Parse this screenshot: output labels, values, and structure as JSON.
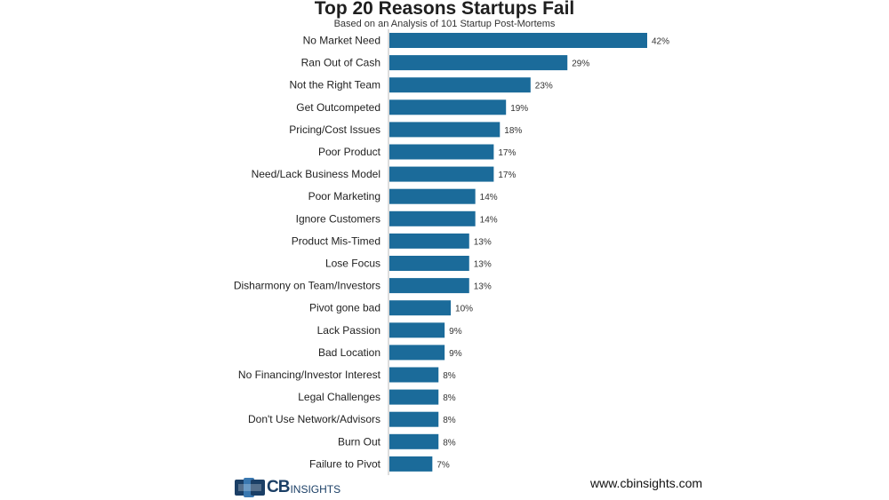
{
  "header": {
    "title": "Top 20 Reasons Startups Fail",
    "subtitle": "Based on an Analysis of 101 Startup Post-Mortems"
  },
  "chart_data": {
    "type": "bar",
    "orientation": "horizontal",
    "title": "Top 20 Reasons Startups Fail",
    "subtitle": "Based on an Analysis of 101 Startup Post-Mortems",
    "categories": [
      "No Market Need",
      "Ran Out of Cash",
      "Not the Right Team",
      "Get Outcompeted",
      "Pricing/Cost Issues",
      "Poor Product",
      "Need/Lack Business Model",
      "Poor Marketing",
      "Ignore Customers",
      "Product Mis-Timed",
      "Lose Focus",
      "Disharmony on Team/Investors",
      "Pivot gone bad",
      "Lack Passion",
      "Bad Location",
      "No Financing/Investor Interest",
      "Legal Challenges",
      "Don't Use Network/Advisors",
      "Burn Out",
      "Failure to Pivot"
    ],
    "values": [
      42,
      29,
      23,
      19,
      18,
      17,
      17,
      14,
      14,
      13,
      13,
      13,
      10,
      9,
      9,
      8,
      8,
      8,
      8,
      7
    ],
    "value_labels": [
      "42%",
      "29%",
      "23%",
      "19%",
      "18%",
      "17%",
      "17%",
      "14%",
      "14%",
      "13%",
      "13%",
      "13%",
      "10%",
      "9%",
      "9%",
      "8%",
      "8%",
      "8%",
      "8%",
      "7%"
    ],
    "xlim": [
      0,
      42
    ],
    "unit": "%",
    "grid": false,
    "bar_color": "#1b6b9a",
    "axis_color": "#bbbbbb"
  },
  "footer": {
    "logo_cb": "CB",
    "logo_insights": "INSIGHTS",
    "site": "www.cbinsights.com"
  },
  "colors": {
    "logo_dark": "#1b3f66",
    "logo_light": "#3a78b0"
  }
}
